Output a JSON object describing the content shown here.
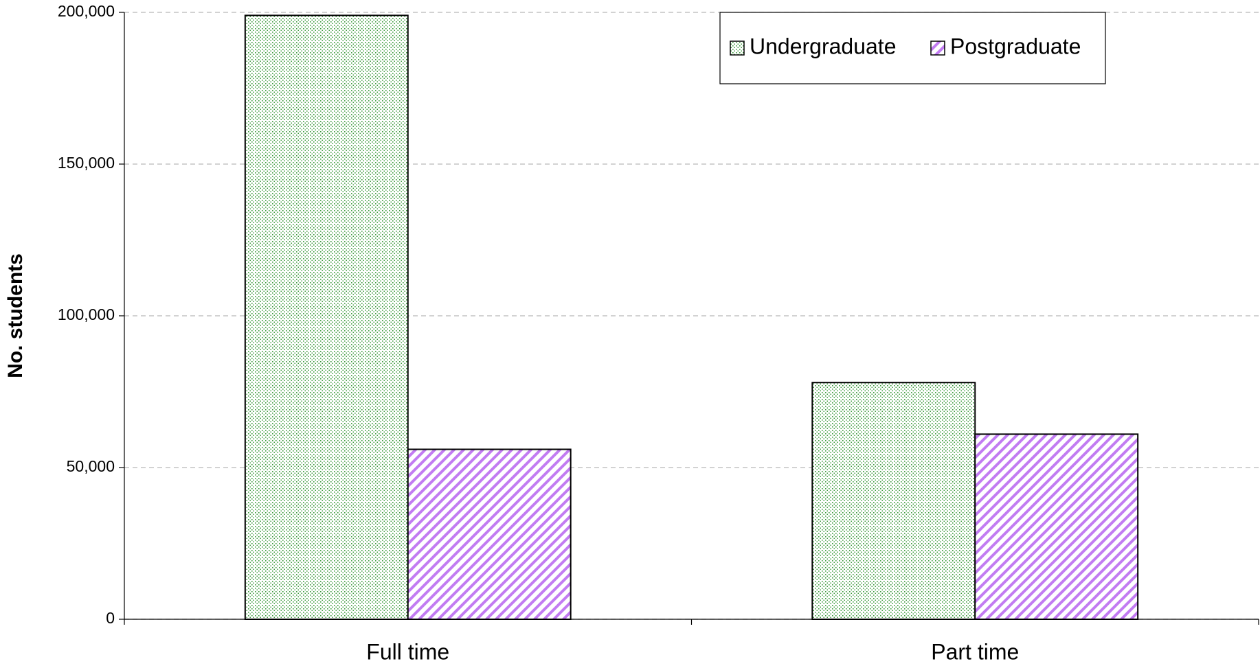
{
  "chart_data": {
    "type": "bar",
    "y_label": "No. students",
    "categories": [
      "Full time",
      "Part time"
    ],
    "series": [
      {
        "name": "Undergraduate",
        "color": "#3a9a3a",
        "pattern": "dots",
        "values": [
          199000,
          78000
        ]
      },
      {
        "name": "Postgraduate",
        "color": "#c27cf2",
        "pattern": "stripes",
        "values": [
          56000,
          61000
        ]
      }
    ],
    "ylim": [
      0,
      200000
    ],
    "yticks": [
      0,
      {
        "value": 50000,
        "label": "50,000"
      },
      {
        "value": 100000,
        "label": "100,000"
      },
      {
        "value": 150000,
        "label": "150,000"
      },
      {
        "value": 200000,
        "label": "200,000"
      }
    ],
    "grid": true,
    "legend": "top-right"
  }
}
